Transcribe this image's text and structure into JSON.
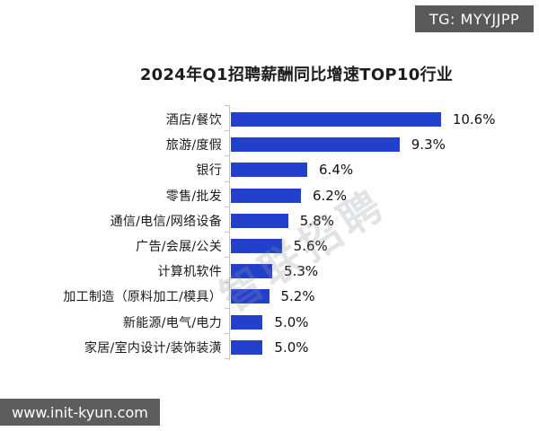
{
  "badges": {
    "tg": "TG: MYYJJPP",
    "site": "www.init-kyun.com"
  },
  "watermark": "智联招聘",
  "chart_data": {
    "type": "bar",
    "orientation": "horizontal",
    "title": "2024年Q1招聘薪酬同比增速TOP10行业",
    "categories": [
      "酒店/餐饮",
      "旅游/度假",
      "银行",
      "零售/批发",
      "通信/电信/网络设备",
      "广告/会展/公关",
      "计算机软件",
      "加工制造（原料加工/模具）",
      "新能源/电气/电力",
      "家居/室内设计/装饰装潢"
    ],
    "values": [
      10.6,
      9.3,
      6.4,
      6.2,
      5.8,
      5.6,
      5.3,
      5.2,
      5.0,
      5.0
    ],
    "value_labels": [
      "10.6%",
      "9.3%",
      "6.4%",
      "6.2%",
      "5.8%",
      "5.6%",
      "5.3%",
      "5.2%",
      "5.0%",
      "5.0%"
    ],
    "xlim": [
      4,
      11
    ],
    "grid": false,
    "legend": false,
    "bar_color": "#2340cd"
  },
  "colors": {
    "bar": "#2340cd",
    "badge_bg": "#595959",
    "badge_text": "#ffffff",
    "text": "#1a1a1a",
    "axis": "#c6c6c6"
  }
}
